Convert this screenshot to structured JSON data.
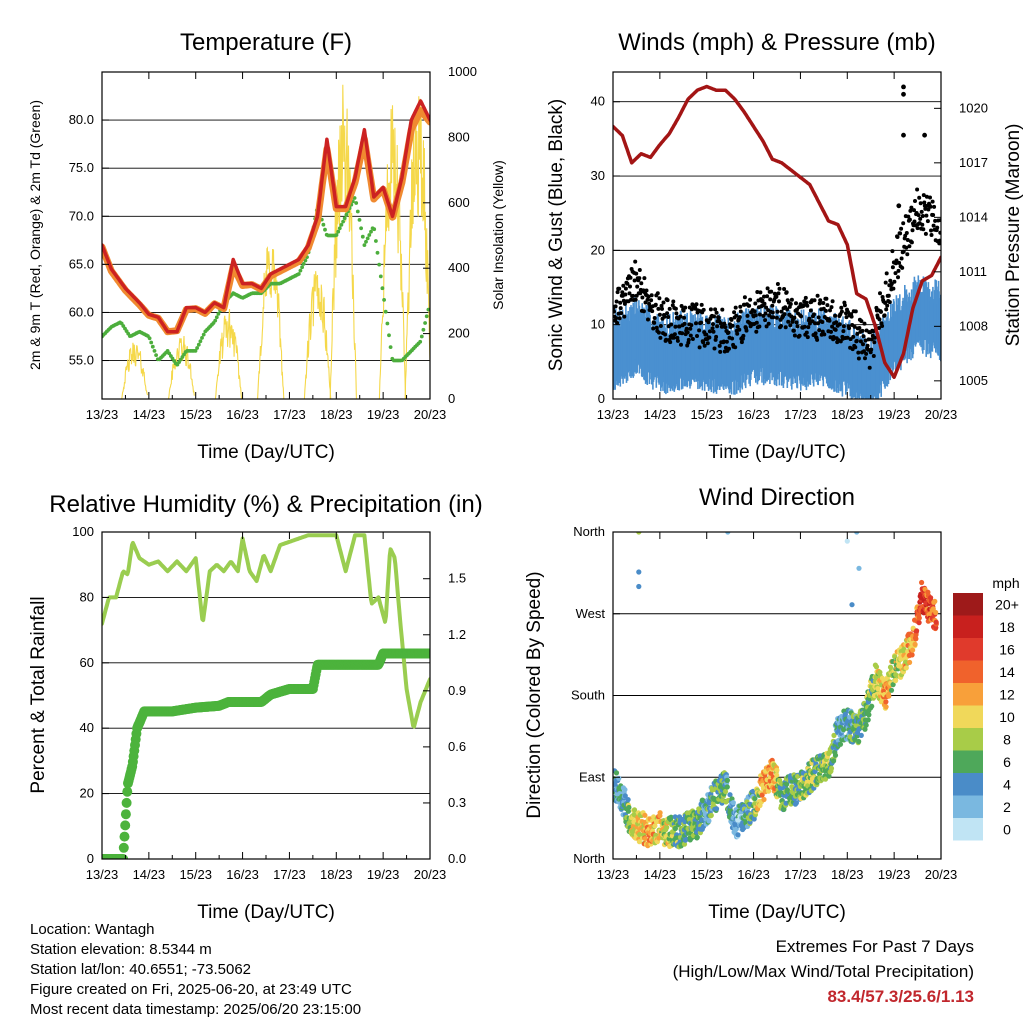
{
  "charts": {
    "temperature": {
      "title": "Temperature (F)",
      "ylabel_left": "2m & 9m T (Red, Orange) & 2m Td (Green)",
      "ylabel_right": "Solar Insolation (Yellow)",
      "xlabel": "Time (Day/UTC)"
    },
    "winds": {
      "title": "Winds (mph) & Pressure (mb)",
      "ylabel_left": "Sonic Wind & Gust (Blue, Black)",
      "ylabel_right": "Station Pressure (Maroon)",
      "xlabel": "Time (Day/UTC)"
    },
    "humidity": {
      "title": "Relative Humidity (%) & Precipitation (in)",
      "ylabel_left": "Percent & Total Rainfall",
      "xlabel": "Time (Day/UTC)"
    },
    "direction": {
      "title": "Wind Direction",
      "ylabel_left": "Direction (Colored By Speed)",
      "xlabel": "Time (Day/UTC)",
      "colorbar_title": "mph"
    }
  },
  "info": {
    "location": "Location: Wantagh",
    "elevation": "Station elevation: 8.5344 m",
    "latlon": "Station lat/lon: 40.6551; -73.5062",
    "created": "Figure created on Fri, 2025-06-20, at 23:49 UTC",
    "recent": "Most recent data timestamp: 2025/06/20 23:15:00"
  },
  "extremes": {
    "line1": "Extremes For Past 7 Days",
    "line2": "(High/Low/Max Wind/Total Precipitation)",
    "values": "83.4/57.3/25.6/1.13"
  },
  "colors": {
    "temp_2m": "#cc2222",
    "temp_9m": "#f08a30",
    "dewpoint": "#4cae3c",
    "insolation": "#f5d84a",
    "wind": "#4a90d0",
    "gust": "#000000",
    "pressure": "#a31515",
    "rh": "#9acd50",
    "precip": "#4cb33c"
  },
  "chart_data": [
    {
      "type": "line",
      "title": "Temperature (F)",
      "xlabel": "Time (Day/UTC)",
      "ylabel": "2m & 9m T (Red, Orange) & 2m Td (Green)",
      "ylabel_right": "Solar Insolation (Yellow)",
      "x_ticks": [
        "13/23",
        "14/23",
        "15/23",
        "16/23",
        "17/23",
        "18/23",
        "19/23",
        "20/23"
      ],
      "xlim": [
        0,
        7
      ],
      "ylim": [
        51,
        85
      ],
      "y_ticks": [
        "55.0",
        "60.0",
        "65.0",
        "70.0",
        "75.0",
        "80.0"
      ],
      "y2lim": [
        0,
        1000
      ],
      "y2_ticks": [
        "0",
        "200",
        "400",
        "600",
        "800",
        "1000"
      ],
      "grid": true,
      "series": [
        {
          "name": "2m T",
          "color": "#cc2222",
          "x": [
            0,
            0.2,
            0.5,
            0.8,
            1,
            1.2,
            1.4,
            1.6,
            1.8,
            2.0,
            2.2,
            2.4,
            2.6,
            2.8,
            3.0,
            3.2,
            3.4,
            3.6,
            3.8,
            4.0,
            4.2,
            4.4,
            4.6,
            4.8,
            5.0,
            5.2,
            5.4,
            5.6,
            5.8,
            6.0,
            6.2,
            6.4,
            6.6,
            6.8,
            7.0
          ],
          "y": [
            67,
            64.5,
            62.5,
            61,
            59.8,
            59.5,
            58,
            58,
            60.5,
            60.5,
            60,
            61,
            60.5,
            65.5,
            63,
            63,
            62.5,
            64,
            64.5,
            65,
            65.5,
            67,
            70,
            78,
            71,
            71,
            74,
            79,
            72,
            73,
            70,
            74,
            80,
            82,
            80
          ]
        },
        {
          "name": "9m T",
          "color": "#f08a30",
          "x": [
            0,
            0.2,
            0.5,
            0.8,
            1,
            1.2,
            1.4,
            1.6,
            1.8,
            2.0,
            2.2,
            2.4,
            2.6,
            2.8,
            3.0,
            3.2,
            3.4,
            3.6,
            3.8,
            4.0,
            4.2,
            4.4,
            4.6,
            4.8,
            5.0,
            5.2,
            5.4,
            5.6,
            5.8,
            6.0,
            6.2,
            6.4,
            6.6,
            6.8,
            7.0
          ],
          "y": [
            66.8,
            64.3,
            62.3,
            60.8,
            59.7,
            59.4,
            58,
            58.1,
            60.3,
            60.4,
            59.9,
            60.9,
            60.4,
            64.8,
            62.8,
            62.9,
            62.4,
            63.8,
            64.3,
            64.8,
            65.3,
            66.7,
            69.5,
            77,
            70.8,
            70.8,
            73.5,
            78,
            71.8,
            72.8,
            69.9,
            73.5,
            79,
            81,
            79.8
          ]
        },
        {
          "name": "2m Td",
          "color": "#4cae3c",
          "x": [
            0,
            0.2,
            0.4,
            0.6,
            0.8,
            1.0,
            1.2,
            1.4,
            1.6,
            1.8,
            2.0,
            2.2,
            2.4,
            2.6,
            2.8,
            3.0,
            3.2,
            3.4,
            3.6,
            3.8,
            4.0,
            4.2,
            4.4,
            4.6,
            4.8,
            5.0,
            5.2,
            5.4,
            5.6,
            5.8,
            6.0,
            6.2,
            6.4,
            6.6,
            6.8,
            7.0
          ],
          "y": [
            57.5,
            58.5,
            59,
            57.5,
            58,
            57.5,
            55,
            56,
            54.5,
            56,
            56,
            58,
            59,
            61,
            62,
            61.5,
            62,
            62,
            63,
            63,
            63.5,
            64,
            66,
            71,
            68,
            68,
            70,
            72,
            67,
            69,
            62,
            55,
            55,
            56,
            57,
            61
          ]
        },
        {
          "name": "Solar Insolation",
          "color": "#f5d84a",
          "axis": "right",
          "peaks": [
            {
              "x": 0.7,
              "y": 180
            },
            {
              "x": 1.7,
              "y": 200
            },
            {
              "x": 2.7,
              "y": 280
            },
            {
              "x": 3.6,
              "y": 520
            },
            {
              "x": 4.6,
              "y": 420
            },
            {
              "x": 5.15,
              "y": 970
            },
            {
              "x": 6.2,
              "y": 900
            },
            {
              "x": 6.75,
              "y": 980
            }
          ]
        }
      ]
    },
    {
      "type": "scatter",
      "title": "Winds (mph) & Pressure (mb)",
      "xlabel": "Time (Day/UTC)",
      "ylabel": "Sonic Wind & Gust (Blue, Black)",
      "ylabel_right": "Station Pressure (Maroon)",
      "x_ticks": [
        "13/23",
        "14/23",
        "15/23",
        "16/23",
        "17/23",
        "18/23",
        "19/23",
        "20/23"
      ],
      "xlim": [
        0,
        7
      ],
      "ylim": [
        0,
        44
      ],
      "y_ticks": [
        "0",
        "10",
        "20",
        "30",
        "40"
      ],
      "y2lim": [
        1004,
        1022
      ],
      "y2_ticks": [
        "1005",
        "1008",
        "1011",
        "1014",
        "1017",
        "1020"
      ],
      "grid": true,
      "series": [
        {
          "name": "Sonic Wind",
          "color": "#4a90d0",
          "x": [
            0,
            0.5,
            1,
            1.5,
            2,
            2.5,
            3,
            3.5,
            4,
            4.5,
            5,
            5.5,
            6,
            6.5,
            7
          ],
          "y": [
            6,
            8,
            5.5,
            6,
            6,
            5,
            7,
            6.5,
            6,
            6.5,
            5,
            3,
            8,
            11,
            10
          ]
        },
        {
          "name": "Gust",
          "color": "#000000",
          "x": [
            0,
            0.5,
            1,
            1.5,
            2,
            2.5,
            3,
            3.5,
            4,
            4.5,
            5,
            5.5,
            6,
            6.5,
            7
          ],
          "y": [
            10,
            15,
            10,
            9,
            9,
            8,
            11,
            12,
            10,
            10,
            9,
            6,
            17,
            25,
            22
          ]
        },
        {
          "name": "Station Pressure",
          "color": "#a31515",
          "axis": "right",
          "x": [
            0,
            0.2,
            0.4,
            0.6,
            0.8,
            1.0,
            1.2,
            1.4,
            1.6,
            1.8,
            2.0,
            2.2,
            2.4,
            2.6,
            2.8,
            3.0,
            3.2,
            3.4,
            3.6,
            3.8,
            4.0,
            4.2,
            4.4,
            4.6,
            4.8,
            5.0,
            5.2,
            5.4,
            5.6,
            5.8,
            6.0,
            6.2,
            6.4,
            6.6,
            6.8,
            7.0
          ],
          "y": [
            1019,
            1018.5,
            1017,
            1017.5,
            1017.3,
            1018,
            1018.6,
            1019.5,
            1020.5,
            1021,
            1021.2,
            1021,
            1021,
            1020.5,
            1019.8,
            1019,
            1018.2,
            1017.2,
            1017,
            1016.6,
            1016.2,
            1015.8,
            1014.8,
            1013.8,
            1013.6,
            1012.5,
            1009.8,
            1009.5,
            1008,
            1006,
            1005.2,
            1006.5,
            1009,
            1010.5,
            1010.8,
            1011.8
          ]
        }
      ]
    },
    {
      "type": "line",
      "title": "Relative Humidity (%) & Precipitation (in)",
      "xlabel": "Time (Day/UTC)",
      "ylabel": "Percent & Total Rainfall",
      "x_ticks": [
        "13/23",
        "14/23",
        "15/23",
        "16/23",
        "17/23",
        "18/23",
        "19/23",
        "20/23"
      ],
      "xlim": [
        0,
        7
      ],
      "ylim": [
        0,
        100
      ],
      "y_ticks": [
        "0",
        "20",
        "40",
        "60",
        "80",
        "100"
      ],
      "y2lim": [
        0,
        1.75
      ],
      "y2_ticks": [
        "0.0",
        "0.3",
        "0.6",
        "0.9",
        "1.2",
        "1.5"
      ],
      "grid": true,
      "series": [
        {
          "name": "Relative Humidity",
          "color": "#9acd50",
          "x": [
            0,
            0.15,
            0.3,
            0.45,
            0.55,
            0.65,
            0.8,
            1.0,
            1.2,
            1.4,
            1.6,
            1.8,
            2.0,
            2.15,
            2.3,
            2.45,
            2.6,
            2.75,
            2.9,
            3.0,
            3.15,
            3.3,
            3.45,
            3.6,
            3.8,
            4.0,
            4.2,
            4.4,
            4.6,
            4.8,
            5.0,
            5.2,
            5.4,
            5.6,
            5.75,
            5.9,
            6.05,
            6.15,
            6.25,
            6.35,
            6.5,
            6.65,
            6.8,
            7.0
          ],
          "y": [
            72,
            80,
            80,
            88,
            87,
            97,
            92,
            90,
            91,
            88,
            91,
            88,
            92,
            72,
            88,
            90,
            88,
            91,
            88,
            98,
            88,
            85,
            93,
            88,
            96,
            97,
            98,
            99,
            99,
            99,
            99,
            88,
            99,
            99,
            78,
            80,
            72,
            95,
            92,
            75,
            52,
            40,
            48,
            55
          ]
        },
        {
          "name": "Total Precipitation",
          "color": "#4cb33c",
          "axis": "right",
          "x": [
            0,
            0.45,
            0.55,
            0.65,
            0.75,
            0.85,
            0.9,
            1.0,
            1.5,
            2.0,
            2.5,
            2.7,
            3.0,
            3.4,
            3.6,
            4.0,
            4.5,
            4.6,
            5.0,
            5.5,
            5.9,
            6.0,
            6.5,
            7.0
          ],
          "y": [
            0,
            0,
            0.4,
            0.5,
            0.7,
            0.76,
            0.79,
            0.79,
            0.79,
            0.81,
            0.82,
            0.84,
            0.84,
            0.84,
            0.88,
            0.91,
            0.91,
            1.04,
            1.04,
            1.04,
            1.04,
            1.1,
            1.1,
            1.1
          ]
        }
      ]
    },
    {
      "type": "scatter",
      "title": "Wind Direction",
      "xlabel": "Time (Day/UTC)",
      "ylabel": "Direction (Colored By Speed)",
      "x_ticks": [
        "13/23",
        "14/23",
        "15/23",
        "16/23",
        "17/23",
        "18/23",
        "19/23",
        "20/23"
      ],
      "xlim": [
        0,
        7
      ],
      "ylim": [
        0,
        360
      ],
      "y_ticks": [
        "North",
        "East",
        "South",
        "West",
        "North"
      ],
      "y_tick_values": [
        0,
        90,
        180,
        270,
        360
      ],
      "grid": true,
      "colorbar": {
        "title": "mph",
        "labels": [
          "20+",
          "18",
          "16",
          "14",
          "12",
          "10",
          "8",
          "6",
          "4",
          "2",
          "0"
        ],
        "colors": [
          "#9e1a1a",
          "#c8201e",
          "#e03a2c",
          "#f0622c",
          "#f8a03a",
          "#f0d85a",
          "#a8cc48",
          "#4ea85a",
          "#4a8cc8",
          "#7ab8e0",
          "#c0e4f4"
        ]
      },
      "series": [
        {
          "name": "Wind Direction",
          "x": [
            0,
            0.25,
            0.4,
            0.6,
            0.8,
            1.0,
            1.2,
            1.4,
            1.6,
            1.8,
            2.0,
            2.2,
            2.4,
            2.6,
            2.8,
            3.0,
            3.2,
            3.4,
            3.6,
            3.8,
            4.0,
            4.2,
            4.4,
            4.6,
            4.8,
            5.0,
            5.2,
            5.4,
            5.6,
            5.8,
            6.0,
            6.2,
            6.4,
            6.6,
            6.8
          ],
          "y": [
            85,
            60,
            40,
            35,
            30,
            35,
            30,
            30,
            35,
            40,
            55,
            70,
            80,
            40,
            45,
            60,
            80,
            95,
            70,
            75,
            80,
            90,
            100,
            100,
            140,
            150,
            140,
            160,
            200,
            180,
            210,
            220,
            240,
            290,
            270
          ],
          "speed": [
            4,
            4,
            10,
            10,
            12,
            10,
            8,
            6,
            6,
            6,
            4,
            6,
            6,
            2,
            4,
            6,
            12,
            12,
            6,
            6,
            6,
            8,
            6,
            8,
            4,
            4,
            6,
            6,
            8,
            12,
            8,
            10,
            12,
            16,
            14
          ]
        }
      ]
    }
  ]
}
